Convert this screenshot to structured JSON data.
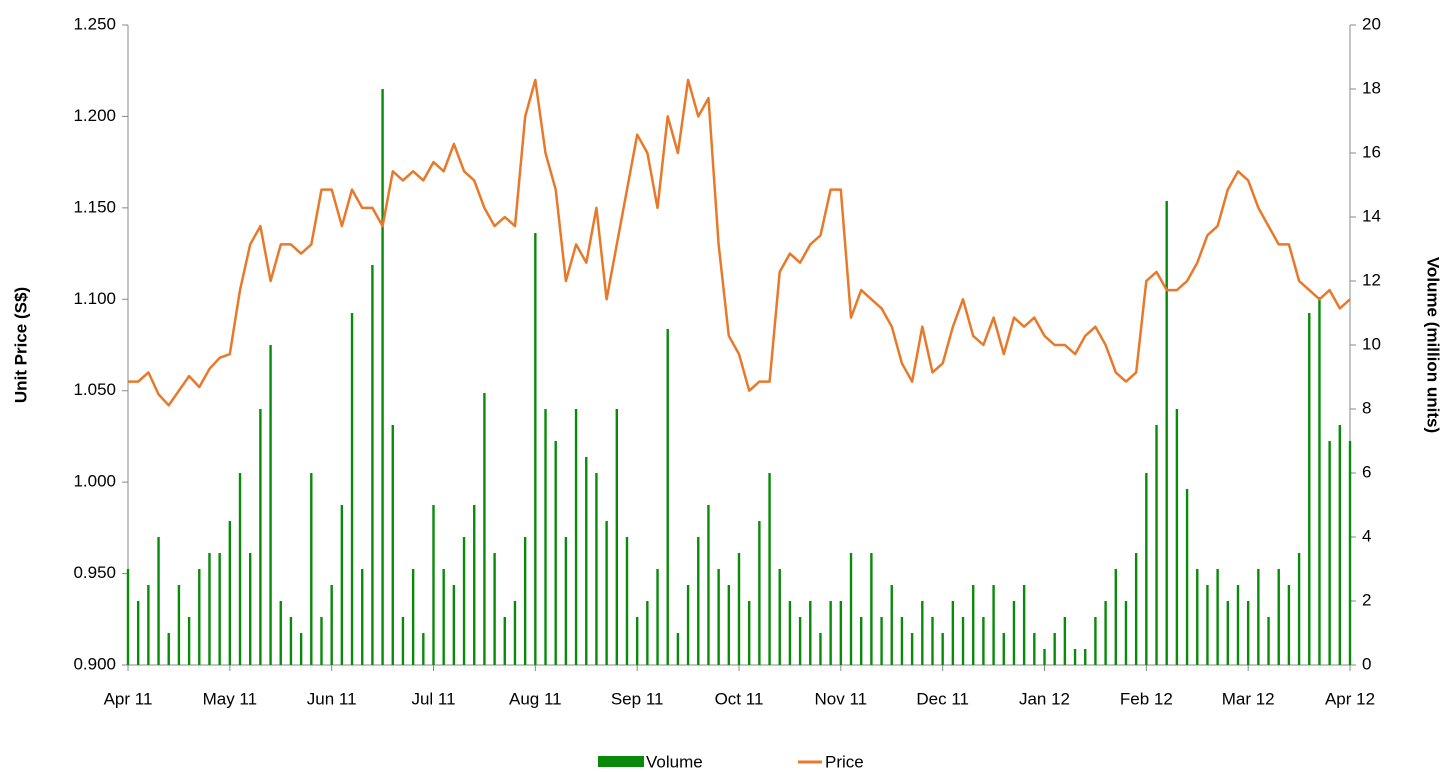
{
  "chart_data": {
    "type": "bar_line",
    "categories": [
      "Apr 11",
      null,
      null,
      null,
      null,
      null,
      null,
      null,
      null,
      null,
      "May 11",
      null,
      null,
      null,
      null,
      null,
      null,
      null,
      null,
      null,
      "Jun 11",
      null,
      null,
      null,
      null,
      null,
      null,
      null,
      null,
      null,
      "Jul 11",
      null,
      null,
      null,
      null,
      null,
      null,
      null,
      null,
      null,
      "Aug 11",
      null,
      null,
      null,
      null,
      null,
      null,
      null,
      null,
      null,
      "Sep 11",
      null,
      null,
      null,
      null,
      null,
      null,
      null,
      null,
      null,
      "Oct 11",
      null,
      null,
      null,
      null,
      null,
      null,
      null,
      null,
      null,
      "Nov 11",
      null,
      null,
      null,
      null,
      null,
      null,
      null,
      null,
      null,
      "Dec 11",
      null,
      null,
      null,
      null,
      null,
      null,
      null,
      null,
      null,
      "Jan 12",
      null,
      null,
      null,
      null,
      null,
      null,
      null,
      null,
      null,
      "Feb 12",
      null,
      null,
      null,
      null,
      null,
      null,
      null,
      null,
      null,
      "Mar 12",
      null,
      null,
      null,
      null,
      null,
      null,
      null,
      null,
      null,
      "Apr 12"
    ],
    "series": [
      {
        "name": "Volume",
        "type": "bar",
        "axis": "y2",
        "color": "#0a8a0a",
        "values": [
          3,
          2,
          2.5,
          4,
          1,
          2.5,
          1.5,
          3,
          3.5,
          3.5,
          4.5,
          6,
          3.5,
          8,
          10,
          2,
          1.5,
          1,
          6,
          1.5,
          2.5,
          5,
          11,
          3,
          12.5,
          18,
          7.5,
          1.5,
          3,
          1,
          5,
          3,
          2.5,
          4,
          5,
          8.5,
          3.5,
          1.5,
          2,
          4,
          13.5,
          8,
          7,
          4,
          8,
          6.5,
          6,
          4.5,
          8,
          4,
          1.5,
          2,
          3,
          10.5,
          1,
          2.5,
          4,
          5,
          3,
          2.5,
          3.5,
          2,
          4.5,
          6,
          3,
          2,
          1.5,
          2,
          1,
          2,
          2,
          3.5,
          1.5,
          3.5,
          1.5,
          2.5,
          1.5,
          1,
          2,
          1.5,
          1,
          2,
          1.5,
          2.5,
          1.5,
          2.5,
          1,
          2,
          2.5,
          1,
          0.5,
          1,
          1.5,
          0.5,
          0.5,
          1.5,
          2,
          3,
          2,
          3.5,
          6,
          7.5,
          14.5,
          8,
          5.5,
          3,
          2.5,
          3,
          2,
          2.5,
          2,
          3,
          1.5,
          3,
          2.5,
          3.5,
          11,
          11.5,
          7,
          7.5,
          7
        ]
      },
      {
        "name": "Price",
        "type": "line",
        "axis": "y",
        "color": "#e8792a",
        "values": [
          1.055,
          1.055,
          1.06,
          1.048,
          1.042,
          1.05,
          1.058,
          1.052,
          1.062,
          1.068,
          1.07,
          1.105,
          1.13,
          1.14,
          1.11,
          1.13,
          1.13,
          1.125,
          1.13,
          1.16,
          1.16,
          1.14,
          1.16,
          1.15,
          1.15,
          1.14,
          1.17,
          1.165,
          1.17,
          1.165,
          1.175,
          1.17,
          1.185,
          1.17,
          1.165,
          1.15,
          1.14,
          1.145,
          1.14,
          1.2,
          1.22,
          1.18,
          1.16,
          1.11,
          1.13,
          1.12,
          1.15,
          1.1,
          1.13,
          1.16,
          1.19,
          1.18,
          1.15,
          1.2,
          1.18,
          1.22,
          1.2,
          1.21,
          1.13,
          1.08,
          1.07,
          1.05,
          1.055,
          1.055,
          1.115,
          1.125,
          1.12,
          1.13,
          1.135,
          1.16,
          1.16,
          1.09,
          1.105,
          1.1,
          1.095,
          1.085,
          1.065,
          1.055,
          1.085,
          1.06,
          1.065,
          1.085,
          1.1,
          1.08,
          1.075,
          1.09,
          1.07,
          1.09,
          1.085,
          1.09,
          1.08,
          1.075,
          1.075,
          1.07,
          1.08,
          1.085,
          1.075,
          1.06,
          1.055,
          1.06,
          1.11,
          1.115,
          1.105,
          1.105,
          1.11,
          1.12,
          1.135,
          1.14,
          1.16,
          1.17,
          1.165,
          1.15,
          1.14,
          1.13,
          1.13,
          1.11,
          1.105,
          1.1,
          1.105,
          1.095,
          1.1
        ]
      }
    ],
    "y_label": "Unit Price (S$)",
    "y2_label": "Volume (million units)",
    "ylim": [
      0.9,
      1.25
    ],
    "yticks": [
      {
        "value": 0.9,
        "label": "0.900"
      },
      {
        "value": 0.95,
        "label": "0.950"
      },
      {
        "value": 1.0,
        "label": "1.000"
      },
      {
        "value": 1.05,
        "label": "1.050"
      },
      {
        "value": 1.1,
        "label": "1.100"
      },
      {
        "value": 1.15,
        "label": "1.150"
      },
      {
        "value": 1.2,
        "label": "1.200"
      },
      {
        "value": 1.25,
        "label": "1.250"
      }
    ],
    "y2lim": [
      0,
      20
    ],
    "y2ticks": [
      0,
      2,
      4,
      6,
      8,
      10,
      12,
      14,
      16,
      18,
      20
    ],
    "legend": "bottom"
  }
}
